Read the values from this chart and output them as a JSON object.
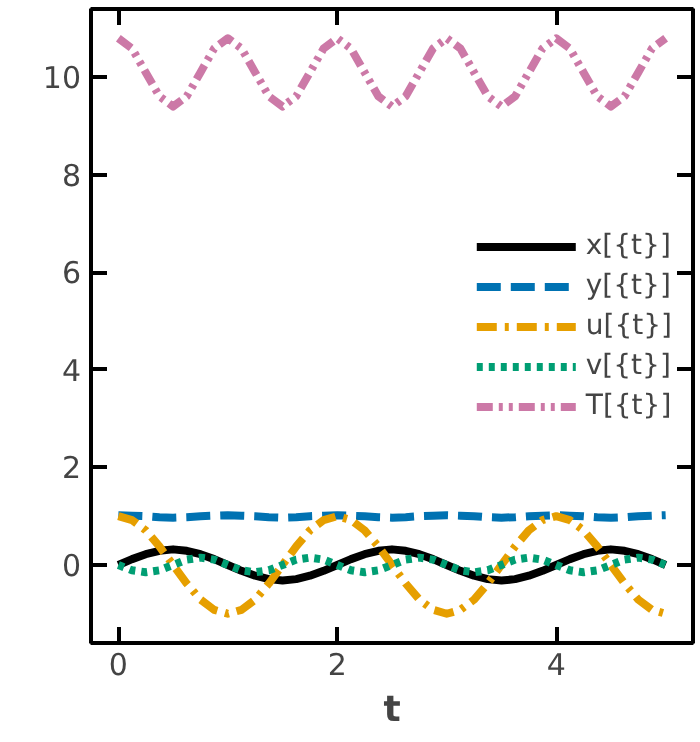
{
  "chart_data": {
    "type": "line",
    "xlabel": "t",
    "xlim": [
      -0.25,
      5.25
    ],
    "ylim": [
      -1.6,
      11.4
    ],
    "xticks": [
      0,
      2,
      4
    ],
    "yticks": [
      0,
      2,
      4,
      6,
      8,
      10
    ],
    "grid": false,
    "legend": "right",
    "marker": "none",
    "x": [
      0,
      0.125,
      0.25,
      0.375,
      0.5,
      0.625,
      0.75,
      0.875,
      1,
      1.125,
      1.25,
      1.375,
      1.5,
      1.625,
      1.75,
      1.875,
      2,
      2.125,
      2.25,
      2.375,
      2.5,
      2.625,
      2.75,
      2.875,
      3,
      3.125,
      3.25,
      3.375,
      3.5,
      3.625,
      3.75,
      3.875,
      4,
      4.125,
      4.25,
      4.375,
      4.5,
      4.625,
      4.75,
      4.875,
      5
    ],
    "series": [
      {
        "name": "x[{t}]",
        "color": "#000000",
        "line_style": "solid",
        "values": [
          0,
          0.12,
          0.22,
          0.29,
          0.32,
          0.29,
          0.22,
          0.12,
          0,
          -0.12,
          -0.22,
          -0.29,
          -0.32,
          -0.29,
          -0.22,
          -0.12,
          0,
          0.12,
          0.22,
          0.29,
          0.32,
          0.29,
          0.22,
          0.12,
          0,
          -0.12,
          -0.22,
          -0.29,
          -0.32,
          -0.29,
          -0.22,
          -0.12,
          0,
          0.12,
          0.22,
          0.29,
          0.32,
          0.29,
          0.22,
          0.12,
          0
        ]
      },
      {
        "name": "y[{t}]",
        "color": "#0072b2",
        "line_style": "dashed",
        "values": [
          1.02,
          1.01,
          1.0,
          0.98,
          0.97,
          0.98,
          1.0,
          1.01,
          1.02,
          1.01,
          1.0,
          0.98,
          0.97,
          0.98,
          1.0,
          1.01,
          1.02,
          1.01,
          1.0,
          0.98,
          0.97,
          0.98,
          1.0,
          1.01,
          1.02,
          1.01,
          1.0,
          0.98,
          0.97,
          0.98,
          1.0,
          1.01,
          1.02,
          1.01,
          1.0,
          0.98,
          0.97,
          0.98,
          1.0,
          1.01,
          1.02
        ]
      },
      {
        "name": "u[{t}]",
        "color": "#e69f00",
        "line_style": "dashdot",
        "values": [
          1,
          0.92,
          0.71,
          0.38,
          0,
          -0.38,
          -0.71,
          -0.92,
          -1,
          -0.92,
          -0.71,
          -0.38,
          0,
          0.38,
          0.71,
          0.92,
          1,
          0.92,
          0.71,
          0.38,
          0,
          -0.38,
          -0.71,
          -0.92,
          -1,
          -0.92,
          -0.71,
          -0.38,
          0,
          0.38,
          0.71,
          0.92,
          1,
          0.92,
          0.71,
          0.38,
          0,
          -0.38,
          -0.71,
          -0.92,
          -1
        ]
      },
      {
        "name": "v[{t}]",
        "color": "#009e73",
        "line_style": "dotted",
        "values": [
          0,
          -0.11,
          -0.15,
          -0.11,
          0,
          0.11,
          0.15,
          0.11,
          0,
          -0.11,
          -0.15,
          -0.11,
          0,
          0.11,
          0.15,
          0.11,
          0,
          -0.11,
          -0.15,
          -0.11,
          0,
          0.11,
          0.15,
          0.11,
          0,
          -0.11,
          -0.15,
          -0.11,
          0,
          0.11,
          0.15,
          0.11,
          0,
          -0.11,
          -0.15,
          -0.11,
          0,
          0.11,
          0.15,
          0.11,
          0
        ]
      },
      {
        "name": "T[{t}]",
        "color": "#cc79a7",
        "line_style": "dashdotdot",
        "values": [
          10.8,
          10.59,
          10.1,
          9.61,
          9.4,
          9.61,
          10.1,
          10.59,
          10.8,
          10.59,
          10.1,
          9.61,
          9.4,
          9.61,
          10.1,
          10.59,
          10.8,
          10.59,
          10.1,
          9.61,
          9.4,
          9.61,
          10.1,
          10.59,
          10.8,
          10.59,
          10.1,
          9.61,
          9.4,
          9.61,
          10.1,
          10.59,
          10.8,
          10.59,
          10.1,
          9.61,
          9.4,
          9.61,
          10.1,
          10.59,
          10.8
        ]
      }
    ]
  }
}
